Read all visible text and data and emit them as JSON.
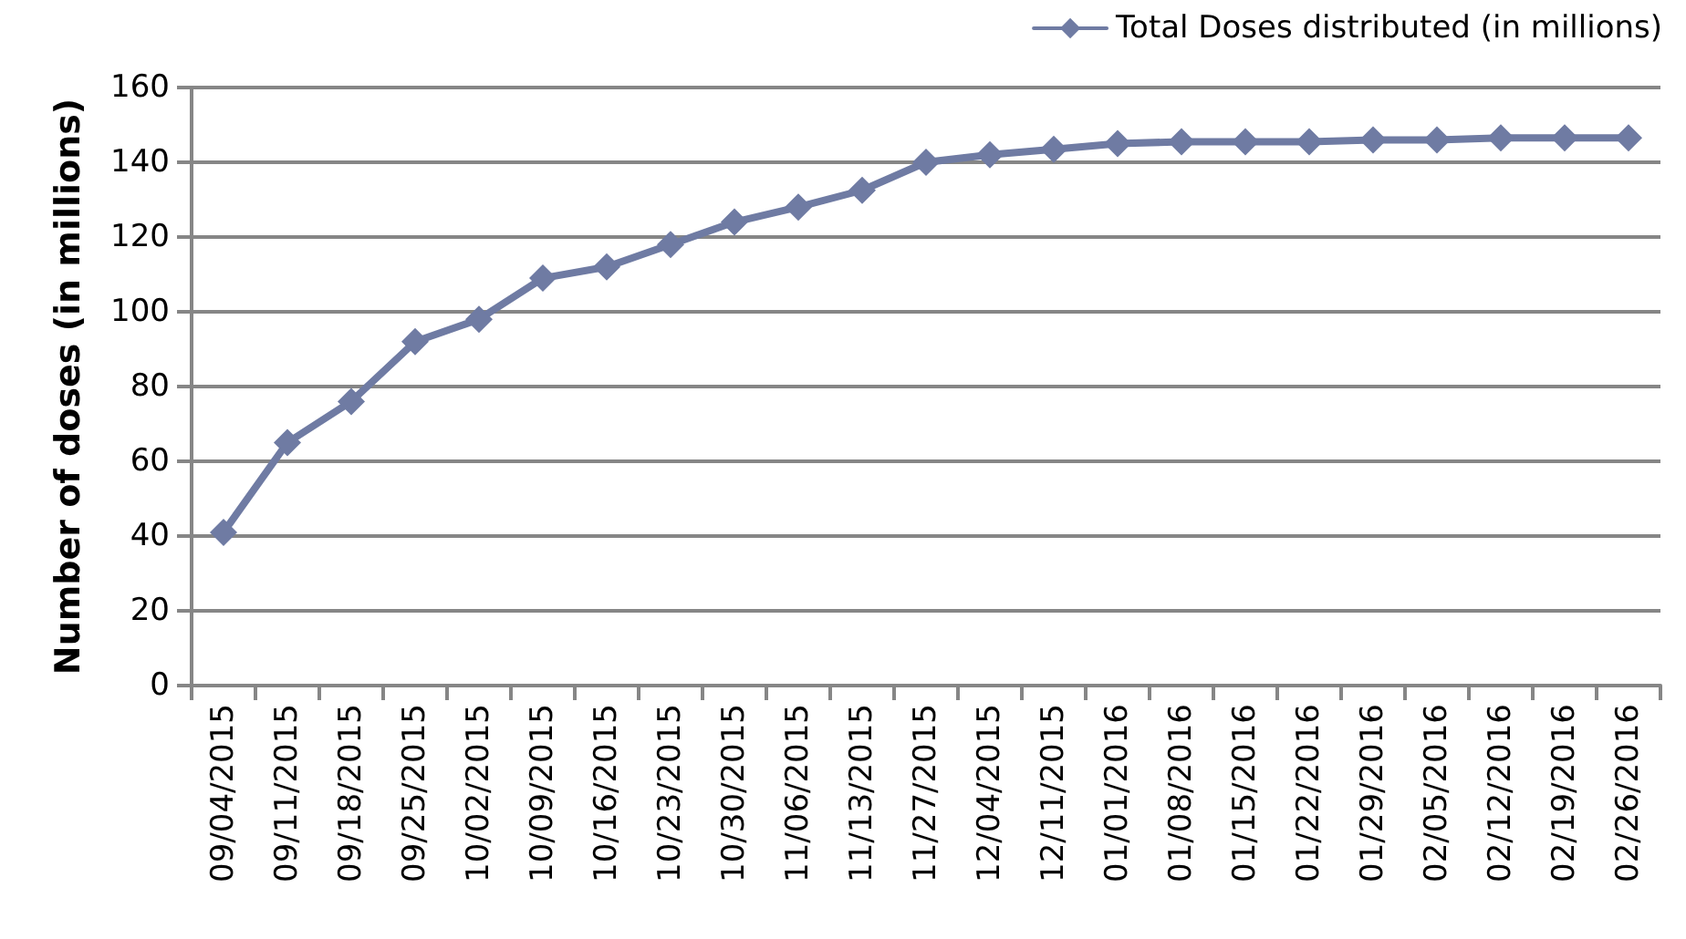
{
  "chart_data": {
    "type": "line",
    "ylabel": "Number of doses (in millions)",
    "categories": [
      "09/04/2015",
      "09/11/2015",
      "09/18/2015",
      "09/25/2015",
      "10/02/2015",
      "10/09/2015",
      "10/16/2015",
      "10/23/2015",
      "10/30/2015",
      "11/06/2015",
      "11/13/2015",
      "11/27/2015",
      "12/04/2015",
      "12/11/2015",
      "01/01/2016",
      "01/08/2016",
      "01/15/2016",
      "01/22/2016",
      "01/29/2016",
      "02/05/2016",
      "02/12/2016",
      "02/19/2016",
      "02/26/2016"
    ],
    "series": [
      {
        "name": "Total Doses distributed (in millions)",
        "color": "#6f7ba3",
        "values": [
          41,
          65,
          76,
          92,
          98,
          109,
          112,
          118,
          124,
          128,
          132.5,
          140,
          142,
          143.5,
          145,
          145.5,
          145.5,
          145.5,
          146,
          146,
          146.5,
          146.5,
          146.5
        ]
      }
    ],
    "ylim": [
      0,
      160
    ],
    "yticks": [
      0,
      20,
      40,
      60,
      80,
      100,
      120,
      140,
      160
    ],
    "grid": "y",
    "legend": "top right",
    "marker": "diamond",
    "line_style": "solid"
  }
}
